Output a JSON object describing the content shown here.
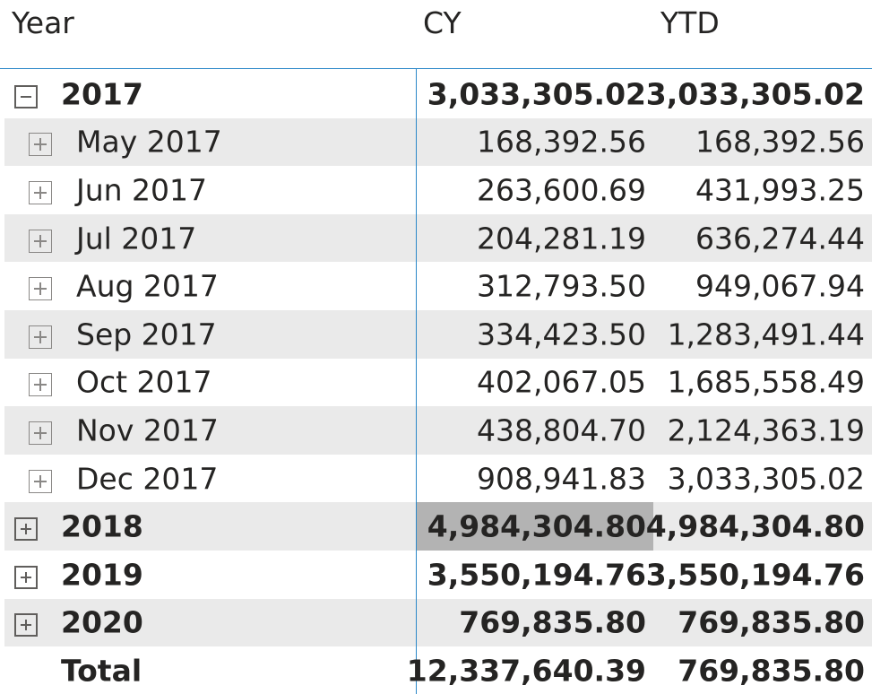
{
  "headers": {
    "year": "Year",
    "cy": "CY",
    "ytd": "YTD"
  },
  "rows": [
    {
      "label": "2017",
      "cy": "3,033,305.02",
      "ytd": "3,033,305.02",
      "level": "major",
      "expanded": true
    },
    {
      "label": "May 2017",
      "cy": "168,392.56",
      "ytd": "168,392.56",
      "level": "minor",
      "expanded": false
    },
    {
      "label": "Jun 2017",
      "cy": "263,600.69",
      "ytd": "431,993.25",
      "level": "minor",
      "expanded": false
    },
    {
      "label": "Jul 2017",
      "cy": "204,281.19",
      "ytd": "636,274.44",
      "level": "minor",
      "expanded": false
    },
    {
      "label": "Aug 2017",
      "cy": "312,793.50",
      "ytd": "949,067.94",
      "level": "minor",
      "expanded": false
    },
    {
      "label": "Sep 2017",
      "cy": "334,423.50",
      "ytd": "1,283,491.44",
      "level": "minor",
      "expanded": false
    },
    {
      "label": "Oct 2017",
      "cy": "402,067.05",
      "ytd": "1,685,558.49",
      "level": "minor",
      "expanded": false
    },
    {
      "label": "Nov 2017",
      "cy": "438,804.70",
      "ytd": "2,124,363.19",
      "level": "minor",
      "expanded": false
    },
    {
      "label": "Dec 2017",
      "cy": "908,941.83",
      "ytd": "3,033,305.02",
      "level": "minor",
      "expanded": false
    },
    {
      "label": "2018",
      "cy": "4,984,304.80",
      "ytd": "4,984,304.80",
      "level": "major",
      "expanded": false,
      "selected_cy": true
    },
    {
      "label": "2019",
      "cy": "3,550,194.76",
      "ytd": "3,550,194.76",
      "level": "major",
      "expanded": false
    },
    {
      "label": "2020",
      "cy": "769,835.80",
      "ytd": "769,835.80",
      "level": "major",
      "expanded": false
    }
  ],
  "total": {
    "label": "Total",
    "cy": "12,337,640.39",
    "ytd": "769,835.80"
  },
  "colors": {
    "accent_line": "#2b88c8",
    "row_band": "#eaeaea",
    "selected_cell": "#b3b3b3"
  }
}
